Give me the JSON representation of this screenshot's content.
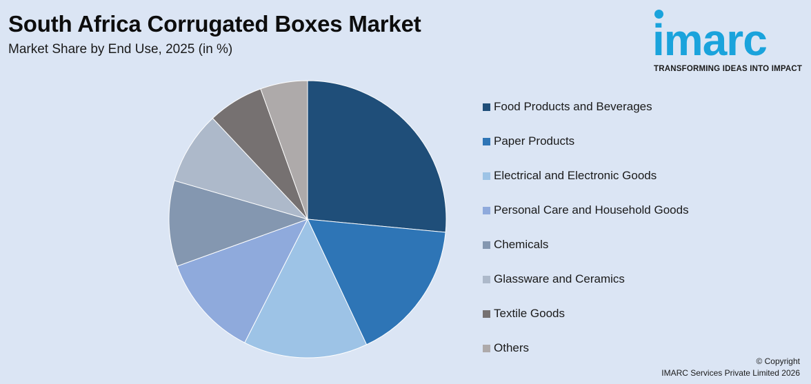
{
  "header": {
    "title": "South Africa Corrugated Boxes Market",
    "subtitle": "Market Share by End Use, 2025 (in %)"
  },
  "logo": {
    "word": "imarc",
    "tagline": "TRANSFORMING IDEAS INTO IMPACT",
    "color": "#1aa3dc"
  },
  "chart_data": {
    "type": "pie",
    "title": "South Africa Corrugated Boxes Market",
    "subtitle": "Market Share by End Use, 2025 (in %)",
    "legend_position": "right",
    "categories": [
      "Food Products and Beverages",
      "Paper Products",
      "Electrical and Electronic Goods",
      "Personal Care and Household Goods",
      "Chemicals",
      "Glassware and Ceramics",
      "Textile Goods",
      "Others"
    ],
    "values": [
      26.5,
      16.5,
      14.5,
      12,
      10,
      8.5,
      6.5,
      5.5
    ],
    "colors": [
      "#1f4e79",
      "#2e75b6",
      "#9dc3e6",
      "#8faadc",
      "#8497b0",
      "#adb9ca",
      "#767171",
      "#aeaaaa"
    ]
  },
  "footer": {
    "copyright_line1": "© Copyright",
    "copyright_line2": "IMARC Services Private Limited 2026"
  }
}
